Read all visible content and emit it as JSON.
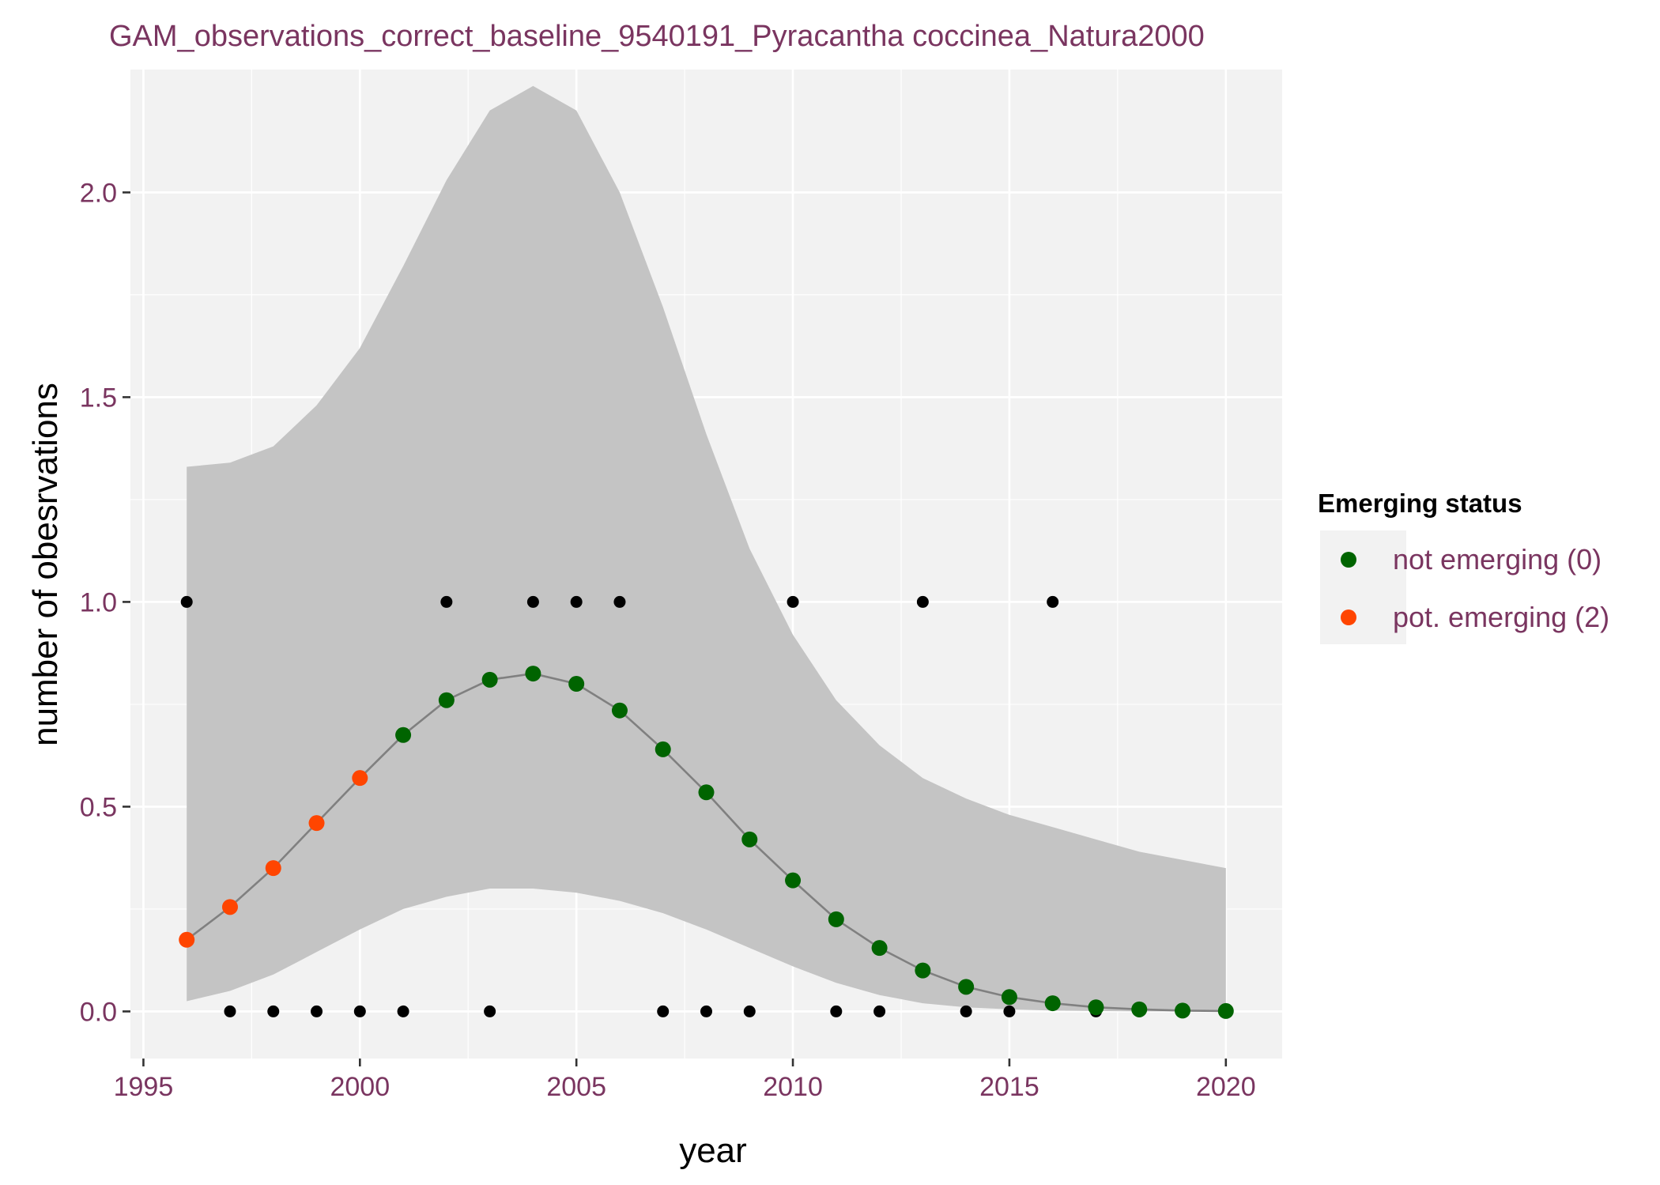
{
  "chart_data": {
    "type": "scatter",
    "title": "GAM_observations_correct_baseline_9540191_Pyracantha coccinea_Natura2000",
    "xlabel": "year",
    "ylabel": "number of obesrvations",
    "xlim": [
      1994.7,
      2021.3
    ],
    "ylim": [
      -0.115,
      2.3
    ],
    "x_ticks": [
      1995,
      2000,
      2005,
      2010,
      2015,
      2020
    ],
    "y_ticks": [
      0.0,
      0.5,
      1.0,
      1.5,
      2.0
    ],
    "x_tick_labels": [
      "1995",
      "2000",
      "2005",
      "2010",
      "2015",
      "2020"
    ],
    "y_tick_labels": [
      "0.0",
      "0.5",
      "1.0",
      "1.5",
      "2.0"
    ],
    "grid": true,
    "legend": {
      "title": "Emerging status",
      "position": "right",
      "entries": [
        {
          "label": "not emerging (0)",
          "color": "#006400"
        },
        {
          "label": "pot. emerging (2)",
          "color": "#ff4500"
        }
      ]
    },
    "colors": {
      "panel": "#f2f2f2",
      "gridline": "#ffffff",
      "ribbon": "#c4c4c4",
      "fit_line": "#808080",
      "observation": "#000000",
      "not_emerging": "#006400",
      "pot_emerging": "#ff4500"
    },
    "observations": {
      "x": [
        1996,
        1997,
        1998,
        1999,
        2000,
        2001,
        2002,
        2003,
        2004,
        2005,
        2006,
        2007,
        2008,
        2009,
        2010,
        2011,
        2012,
        2013,
        2014,
        2015,
        2016,
        2017,
        2018,
        2019,
        2020
      ],
      "y": [
        1,
        0,
        0,
        0,
        0,
        0,
        1,
        0,
        1,
        1,
        1,
        0,
        0,
        0,
        1,
        0,
        0,
        1,
        0,
        0,
        1,
        0,
        0,
        0,
        0
      ]
    },
    "fit": {
      "x": [
        1996,
        1997,
        1998,
        1999,
        2000,
        2001,
        2002,
        2003,
        2004,
        2005,
        2006,
        2007,
        2008,
        2009,
        2010,
        2011,
        2012,
        2013,
        2014,
        2015,
        2016,
        2017,
        2018,
        2019,
        2020
      ],
      "y": [
        0.175,
        0.255,
        0.35,
        0.46,
        0.57,
        0.675,
        0.76,
        0.81,
        0.825,
        0.8,
        0.735,
        0.64,
        0.535,
        0.42,
        0.32,
        0.225,
        0.155,
        0.1,
        0.06,
        0.035,
        0.02,
        0.01,
        0.005,
        0.002,
        0.001
      ],
      "lower": [
        0.025,
        0.05,
        0.09,
        0.145,
        0.2,
        0.25,
        0.28,
        0.3,
        0.3,
        0.29,
        0.27,
        0.24,
        0.2,
        0.155,
        0.11,
        0.07,
        0.04,
        0.02,
        0.01,
        0.005,
        0.002,
        0.001,
        0.0,
        0.0,
        0.0
      ],
      "upper": [
        1.33,
        1.34,
        1.38,
        1.48,
        1.62,
        1.82,
        2.03,
        2.2,
        2.26,
        2.2,
        2.0,
        1.72,
        1.41,
        1.13,
        0.92,
        0.76,
        0.65,
        0.57,
        0.52,
        0.48,
        0.45,
        0.42,
        0.39,
        0.37,
        0.35
      ],
      "status": [
        2,
        2,
        2,
        2,
        2,
        0,
        0,
        0,
        0,
        0,
        0,
        0,
        0,
        0,
        0,
        0,
        0,
        0,
        0,
        0,
        0,
        0,
        0,
        0,
        0
      ]
    }
  }
}
